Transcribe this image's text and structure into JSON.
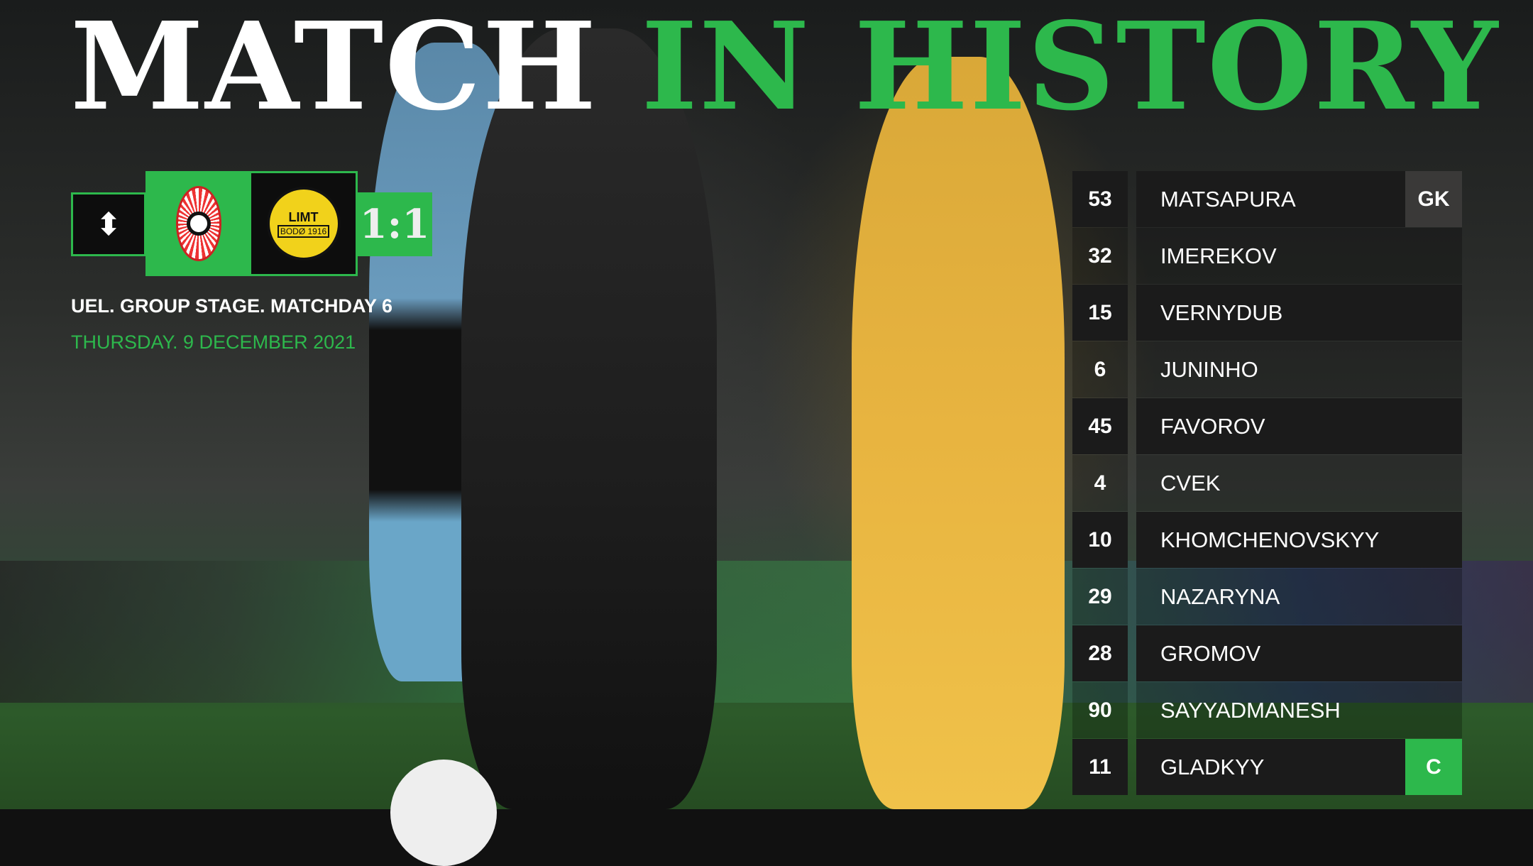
{
  "title": {
    "white": "MATCH",
    "green": "IN HISTORY"
  },
  "match": {
    "competition_icon": "conference-league-trophy-icon",
    "home_crest": "zorya-luhansk-crest",
    "away_crest": "bodo-glimt-crest",
    "away_crest_text": "BODØ 1916",
    "score": "1:1"
  },
  "subtitle": "UEL. GROUP STAGE. MATCHDAY 6",
  "date": "THURSDAY. 9 DECEMBER 2021",
  "colors": {
    "accent": "#2db84c",
    "row": "#1b1b1b",
    "gk": "#3a3938"
  },
  "lineup": [
    {
      "number": "53",
      "name": "MATSAPURA",
      "tag": "GK"
    },
    {
      "number": "32",
      "name": "IMEREKOV"
    },
    {
      "number": "15",
      "name": "VERNYDUB"
    },
    {
      "number": "6",
      "name": "JUNINHO"
    },
    {
      "number": "45",
      "name": "FAVOROV"
    },
    {
      "number": "4",
      "name": "CVEK"
    },
    {
      "number": "10",
      "name": "KHOMCHENOVSKYY"
    },
    {
      "number": "29",
      "name": "NAZARYNA"
    },
    {
      "number": "28",
      "name": "GROMOV"
    },
    {
      "number": "90",
      "name": "SAYYADMANESH"
    },
    {
      "number": "11",
      "name": "GLADKYY",
      "tag": "C"
    }
  ]
}
